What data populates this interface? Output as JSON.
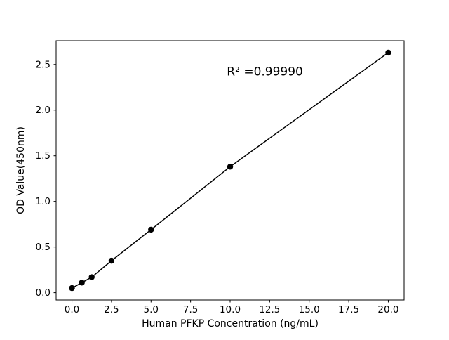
{
  "figure": {
    "background": "#ffffff"
  },
  "chart_data": {
    "type": "scatter",
    "x": [
      0,
      0.625,
      1.25,
      2.5,
      5,
      10,
      20
    ],
    "y": [
      0.05,
      0.11,
      0.17,
      0.35,
      0.69,
      1.38,
      2.63
    ],
    "title": "",
    "xlabel": "Human PFKP Concentration (ng/mL)",
    "ylabel": "OD Value(450nm)",
    "xlim": [
      -1,
      21
    ],
    "ylim": [
      -0.08,
      2.76
    ],
    "xticks": [
      0.0,
      2.5,
      5.0,
      7.5,
      10.0,
      12.5,
      15.0,
      17.5,
      20.0
    ],
    "xtick_labels": [
      "0.0",
      "2.5",
      "5.0",
      "7.5",
      "10.0",
      "12.5",
      "15.0",
      "17.5",
      "20.0"
    ],
    "yticks": [
      0.0,
      0.5,
      1.0,
      1.5,
      2.0,
      2.5
    ],
    "ytick_labels": [
      "0.0",
      "0.5",
      "1.0",
      "1.5",
      "2.0",
      "2.5"
    ],
    "annotation": {
      "text": "R² =0.99990",
      "x": 12.2,
      "y": 2.38
    },
    "line_color": "#000000",
    "marker_color": "#000000",
    "grid": false,
    "legend_position": "none"
  }
}
